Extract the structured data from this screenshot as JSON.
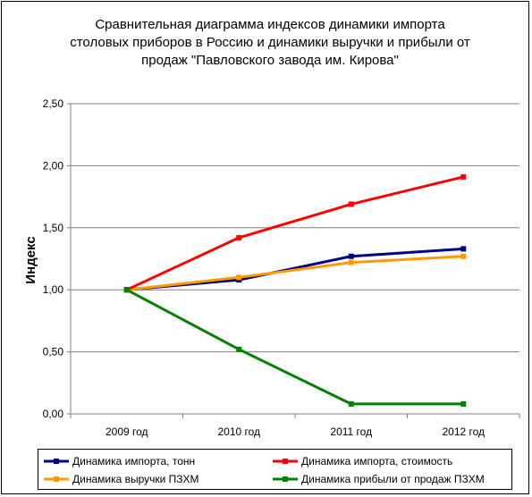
{
  "chart_data": {
    "type": "line",
    "title": "Сравнительная диаграмма индексов динамики импорта столовых приборов в Россию и динамики выручки и прибыли от продаж \"Павловского завода им. Кирова\"",
    "title_lines": [
      "Сравнительная диаграмма индексов динамики импорта",
      "столовых приборов в Россию и динамики выручки и прибыли от",
      "продаж \"Павловского завода им. Кирова\""
    ],
    "xlabel": "",
    "ylabel": "Индекс",
    "categories": [
      "2009 год",
      "2010 год",
      "2011 год",
      "2012 год"
    ],
    "ylim": [
      0,
      2.5
    ],
    "yticks": [
      0,
      0.5,
      1.0,
      1.5,
      2.0,
      2.5
    ],
    "ytick_labels": [
      "0,00",
      "0,50",
      "1,00",
      "1,50",
      "2,00",
      "2,50"
    ],
    "grid": true,
    "legend_position": "bottom",
    "series": [
      {
        "name": "Динамика импорта, тонн",
        "color": "#000080",
        "values": [
          1.0,
          1.08,
          1.27,
          1.33
        ]
      },
      {
        "name": "Динамика импорта, стоимость",
        "color": "#ff0000",
        "values": [
          1.0,
          1.42,
          1.69,
          1.91
        ]
      },
      {
        "name": "Динамика выручки ПЗХМ",
        "color": "#ff9900",
        "values": [
          1.0,
          1.1,
          1.22,
          1.27
        ]
      },
      {
        "name": "Динамика прибыли от продаж ПЗХМ",
        "color": "#008000",
        "values": [
          1.0,
          0.52,
          0.08,
          0.08
        ]
      }
    ]
  }
}
